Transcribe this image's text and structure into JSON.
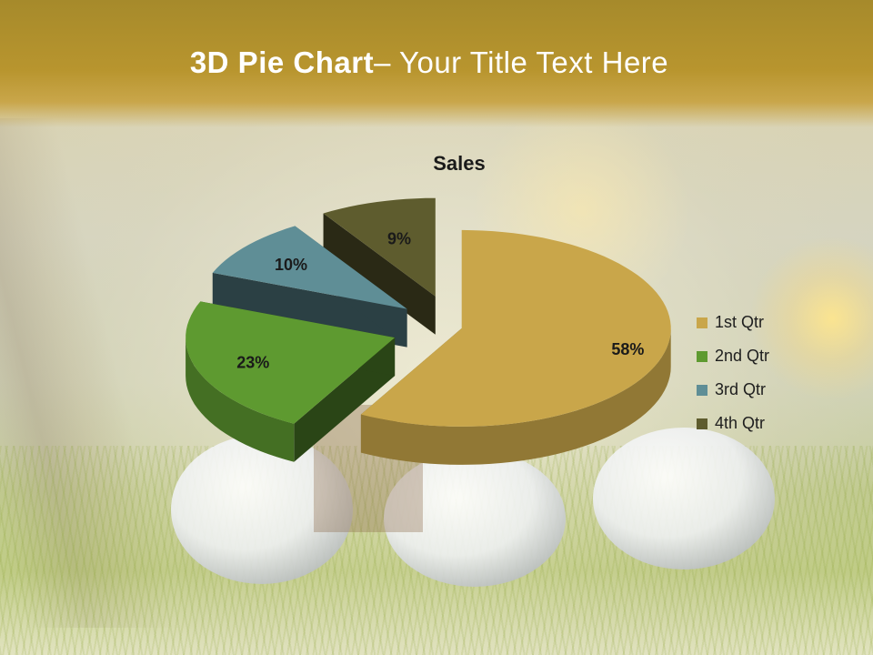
{
  "slide": {
    "title_bold": "3D Pie Chart",
    "title_rest": "– Your Title Text Here"
  },
  "chart_data": {
    "type": "pie",
    "title": "Sales",
    "categories": [
      "1st Qtr",
      "2nd Qtr",
      "3rd Qtr",
      "4th Qtr"
    ],
    "values": [
      58,
      23,
      10,
      9
    ],
    "data_labels": [
      "58%",
      "23%",
      "10%",
      "9%"
    ],
    "colors": [
      "#c9a64a",
      "#5e9a30",
      "#5f8e96",
      "#5e5c2e"
    ],
    "three_d": true,
    "exploded": true,
    "legend": {
      "position": "right"
    }
  }
}
